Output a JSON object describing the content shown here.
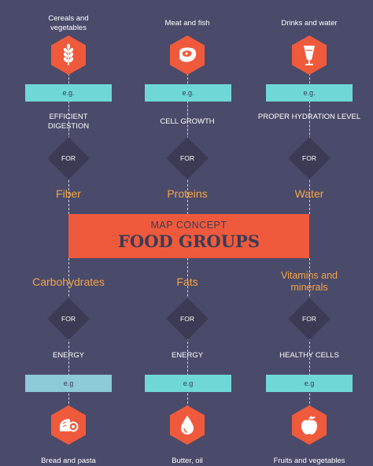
{
  "top": [
    {
      "name": "Cereals and vegetables",
      "eg": "e.g.",
      "benefit": "EFFICIENT DIGESTION",
      "connector": "FOR",
      "group": "Fiber",
      "icon": "wheat-icon"
    },
    {
      "name": "Meat and fish",
      "eg": "e.g.",
      "benefit": "CELL GROWTH",
      "connector": "FOR",
      "group": "Proteins",
      "icon": "steak-icon"
    },
    {
      "name": "Drinks and water",
      "eg": "e.g.",
      "benefit": "PROPER HYDRATION LEVEL",
      "connector": "FOR",
      "group": "Water",
      "icon": "glass-icon"
    }
  ],
  "banner": {
    "subtitle": "MAP CONCEPT",
    "title": "FOOD GROUPS"
  },
  "bottom": [
    {
      "group": "Carbohydrates",
      "connector": "FOR",
      "benefit": "ENERGY",
      "eg": "e.g",
      "name": "Bread and pasta",
      "icon": "bread-icon"
    },
    {
      "group": "Fats",
      "connector": "FOR",
      "benefit": "ENERGY",
      "eg": "e.g",
      "name": "Butter, oil",
      "icon": "drop-icon"
    },
    {
      "group": "Vitamins and minerals",
      "connector": "FOR",
      "benefit": "HEALTHY CELLS",
      "eg": "e.g",
      "name": "Fruits and vegetables",
      "icon": "apple-icon"
    }
  ],
  "colors": {
    "background": "#4a4a6a",
    "accent": "#f05a3c",
    "teal": "#6fd8d6",
    "orange_text": "#f6a545",
    "diamond": "#3b3b55"
  }
}
